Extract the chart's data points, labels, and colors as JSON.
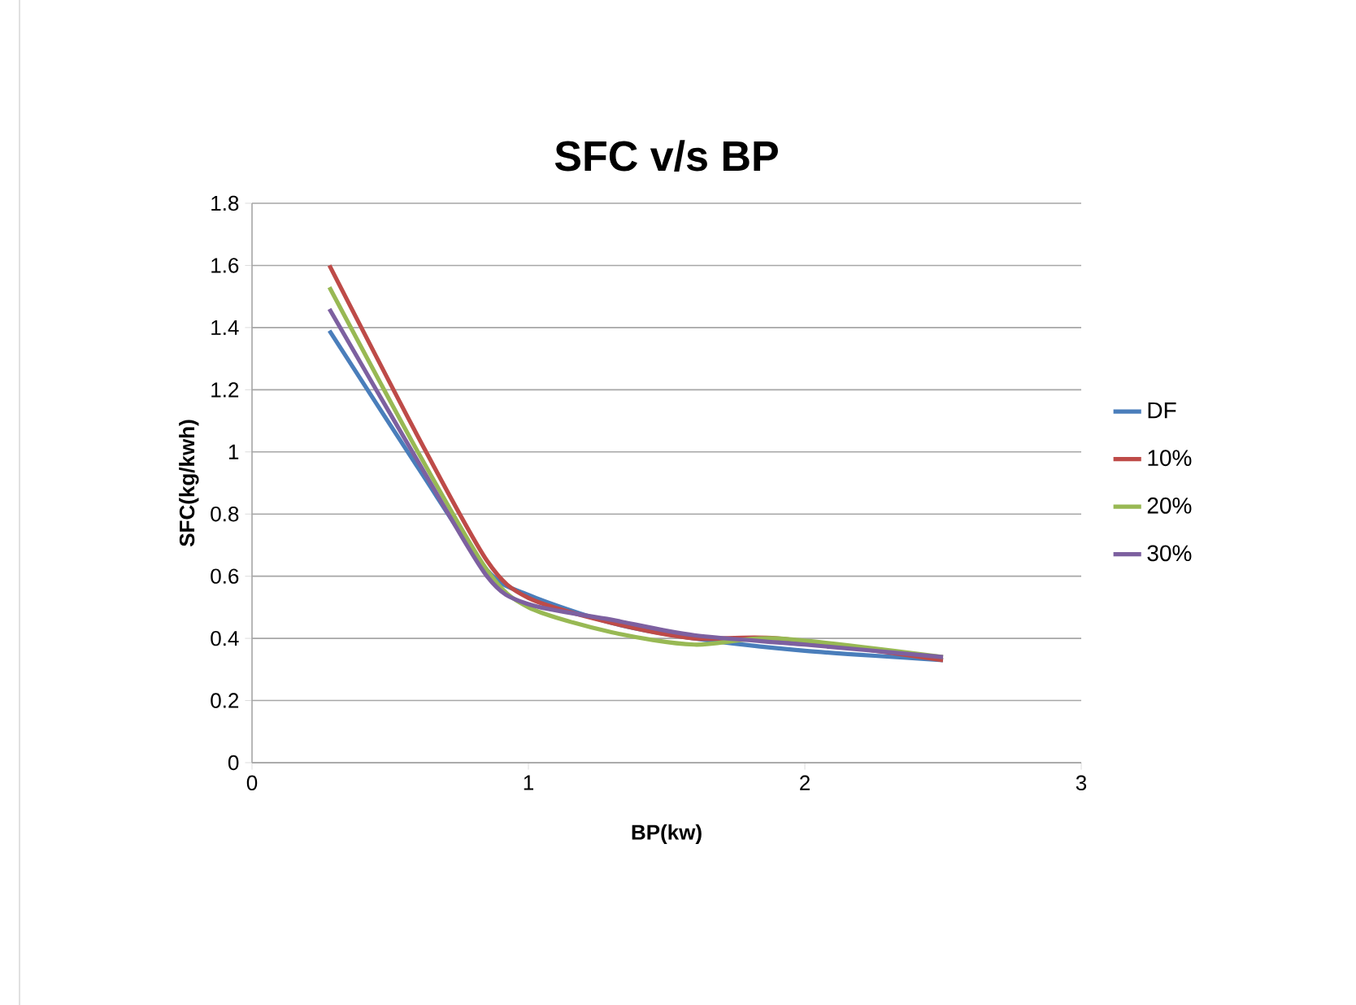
{
  "chart_data": {
    "type": "line",
    "title": "SFC v/s BP",
    "xlabel": "BP(kw)",
    "ylabel": "SFC(kg/kwh)",
    "xlim": [
      0,
      3
    ],
    "xticks": [
      0,
      1,
      2,
      3
    ],
    "ylim": [
      0,
      1.8
    ],
    "yticks": [
      0,
      0.2,
      0.4,
      0.6,
      0.8,
      1,
      1.2,
      1.4,
      1.6,
      1.8
    ],
    "grid": "y",
    "legend": "right",
    "marker": "none",
    "series": [
      {
        "name": "DF",
        "color": "#4a7ebb",
        "x": [
          0.28,
          0.6,
          0.85,
          1.0,
          1.3,
          1.6,
          2.0,
          2.5
        ],
        "values": [
          1.39,
          0.95,
          0.62,
          0.54,
          0.45,
          0.4,
          0.36,
          0.33
        ]
      },
      {
        "name": "10%",
        "color": "#be4b48",
        "x": [
          0.28,
          0.6,
          0.85,
          1.0,
          1.3,
          1.6,
          1.9,
          2.5
        ],
        "values": [
          1.6,
          1.05,
          0.65,
          0.53,
          0.45,
          0.4,
          0.4,
          0.33
        ]
      },
      {
        "name": "20%",
        "color": "#98b954",
        "x": [
          0.28,
          0.6,
          0.85,
          1.0,
          1.3,
          1.6,
          1.9,
          2.5
        ],
        "values": [
          1.53,
          1.0,
          0.62,
          0.5,
          0.42,
          0.38,
          0.4,
          0.34
        ]
      },
      {
        "name": "30%",
        "color": "#7d60a0",
        "x": [
          0.28,
          0.6,
          0.85,
          1.0,
          1.3,
          1.6,
          2.0,
          2.5
        ],
        "values": [
          1.46,
          0.97,
          0.6,
          0.51,
          0.46,
          0.41,
          0.38,
          0.34
        ]
      }
    ]
  }
}
